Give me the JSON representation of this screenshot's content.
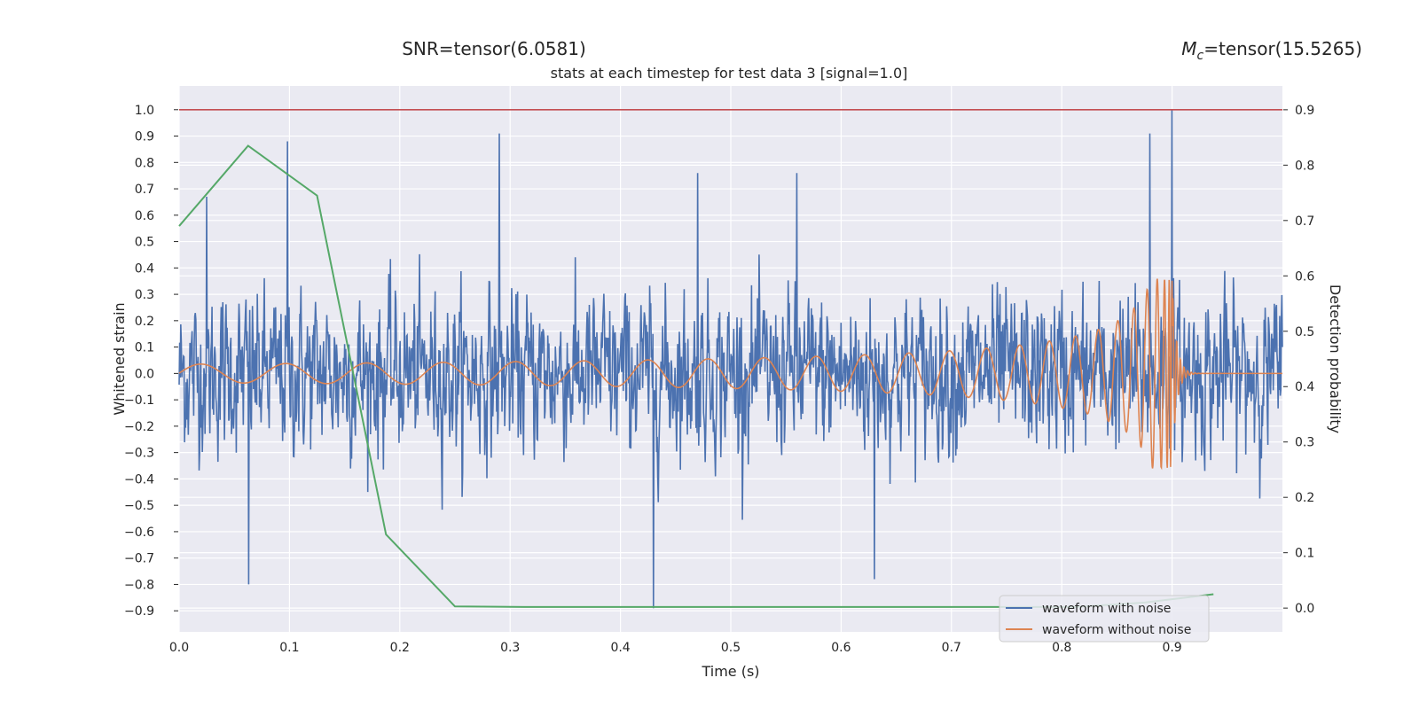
{
  "header": {
    "snr_label": "SNR=tensor(6.0581)",
    "mc_symbol": "M",
    "mc_subscript": "c",
    "mc_value": "=tensor(15.5265)"
  },
  "chart_data": {
    "type": "line",
    "title": "stats at each timestep for test data 3 [signal=1.0]",
    "xlabel": "Time (s)",
    "ylabel": "Whitened strain",
    "y2label": "Detection probability",
    "xlim": [
      0.0,
      1.0
    ],
    "ylim": [
      -0.98,
      1.09
    ],
    "y2lim": [
      -0.043,
      0.943
    ],
    "grid": true,
    "legend_position": "lower-right",
    "x_ticks": [
      "0.0",
      "0.1",
      "0.2",
      "0.3",
      "0.4",
      "0.5",
      "0.6",
      "0.7",
      "0.8",
      "0.9"
    ],
    "y_ticks": [
      "1.0",
      "0.9",
      "0.8",
      "0.7",
      "0.6",
      "0.5",
      "0.4",
      "0.3",
      "0.2",
      "0.1",
      "0.0",
      "−0.1",
      "−0.2",
      "−0.3",
      "−0.4",
      "−0.5",
      "−0.6",
      "−0.7",
      "−0.8",
      "−0.9"
    ],
    "y2_ticks": [
      "0.9",
      "0.8",
      "0.7",
      "0.6",
      "0.5",
      "0.4",
      "0.3",
      "0.2",
      "0.1",
      "0.0"
    ],
    "threshold": {
      "y": 1.0,
      "color": "#c44e52"
    },
    "series": [
      {
        "name": "waveform with noise",
        "color": "#4c72b0",
        "axis": "left",
        "n_samples": 2048,
        "peaks": [
          {
            "x": 0.025,
            "y": 0.67
          },
          {
            "x": 0.063,
            "y": -0.8
          },
          {
            "x": 0.098,
            "y": 0.88
          },
          {
            "x": 0.29,
            "y": 0.91
          },
          {
            "x": 0.43,
            "y": -0.89
          },
          {
            "x": 0.47,
            "y": 0.76
          },
          {
            "x": 0.56,
            "y": 0.76
          },
          {
            "x": 0.63,
            "y": -0.78
          },
          {
            "x": 0.88,
            "y": 0.91
          },
          {
            "x": 0.9,
            "y": 1.0
          }
        ]
      },
      {
        "name": "waveform without noise",
        "color": "#dd8452",
        "axis": "left",
        "chirp": {
          "merger_time": 0.9,
          "peak_amplitude": 0.36,
          "start_amplitude": 0.035
        }
      },
      {
        "name": "detection probability",
        "color": "#55a868",
        "axis": "right",
        "x": [
          0.0,
          0.0625,
          0.125,
          0.1875,
          0.25,
          0.3125,
          0.375,
          0.4375,
          0.5,
          0.5625,
          0.625,
          0.6875,
          0.75,
          0.8125,
          0.875,
          0.9375
        ],
        "y": [
          0.69,
          0.835,
          0.745,
          0.133,
          0.003,
          0.002,
          0.002,
          0.002,
          0.002,
          0.002,
          0.002,
          0.002,
          0.002,
          0.002,
          0.01,
          0.025
        ]
      }
    ]
  }
}
